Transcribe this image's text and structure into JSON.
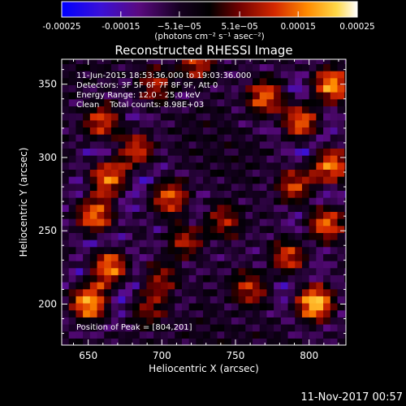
{
  "chart_data": {
    "type": "heatmap",
    "title": "Reconstructed RHESSI Image",
    "xlabel": "Heliocentric X (arcsec)",
    "ylabel": "Heliocentric Y (arcsec)",
    "xlim": [
      632,
      825
    ],
    "ylim": [
      172,
      367
    ],
    "x_ticks": [
      650,
      700,
      750,
      800
    ],
    "y_ticks": [
      200,
      250,
      300,
      350
    ],
    "colorbar": {
      "range": [
        -0.00025,
        0.00025
      ],
      "tick_values": [
        -0.00025,
        -0.00015,
        -5.1e-05,
        5.1e-05,
        0.00015,
        0.00025
      ],
      "tick_labels": [
        "-0.00025",
        "-0.00015",
        "−5.1e−05",
        "5.1e−05",
        "0.00015",
        "0.00025"
      ],
      "unit_label": "(photons cm⁻² s⁻¹ asec⁻²)",
      "colors": [
        "#0000ff",
        "#4a0099",
        "#1a0020",
        "#000000",
        "#7a0000",
        "#d83000",
        "#ff8c00",
        "#ffd040",
        "#ffffff"
      ]
    },
    "annotations": [
      "11-Jun-2015 18:53:36.000 to 19:03:36.000",
      "Detectors: 3F 5F 6F 7F 8F 9F, Att 0",
      "Energy Range: 12.0 - 25.0 keV",
      "Clean    Total counts: 8.98E+03"
    ],
    "peak_label": "Position of Peak = [804,201]",
    "peak": [
      804,
      201
    ],
    "bright_sources": [
      {
        "x": 651,
        "y": 202,
        "v": 0.00025
      },
      {
        "x": 664,
        "y": 224,
        "v": 0.00022
      },
      {
        "x": 655,
        "y": 262,
        "v": 0.00021
      },
      {
        "x": 664,
        "y": 286,
        "v": 0.00023
      },
      {
        "x": 681,
        "y": 305,
        "v": 0.00018
      },
      {
        "x": 660,
        "y": 324,
        "v": 0.00016
      },
      {
        "x": 706,
        "y": 272,
        "v": 0.00017
      },
      {
        "x": 716,
        "y": 244,
        "v": 0.00014
      },
      {
        "x": 741,
        "y": 257,
        "v": 0.00012
      },
      {
        "x": 700,
        "y": 218,
        "v": 0.00012
      },
      {
        "x": 692,
        "y": 198,
        "v": 0.00011
      },
      {
        "x": 771,
        "y": 341,
        "v": 0.00019
      },
      {
        "x": 794,
        "y": 326,
        "v": 0.0002
      },
      {
        "x": 815,
        "y": 349,
        "v": 0.00022
      },
      {
        "x": 814,
        "y": 294,
        "v": 0.00021
      },
      {
        "x": 792,
        "y": 281,
        "v": 0.00017
      },
      {
        "x": 811,
        "y": 255,
        "v": 0.00018
      },
      {
        "x": 786,
        "y": 232,
        "v": 0.00015
      },
      {
        "x": 760,
        "y": 211,
        "v": 0.00013
      },
      {
        "x": 804,
        "y": 201,
        "v": 0.00025
      },
      {
        "x": 723,
        "y": 364,
        "v": 0.00014
      },
      {
        "x": 697,
        "y": 350,
        "v": 0.00012
      }
    ]
  },
  "footer": {
    "timestamp": "11-Nov-2017 00:57"
  }
}
